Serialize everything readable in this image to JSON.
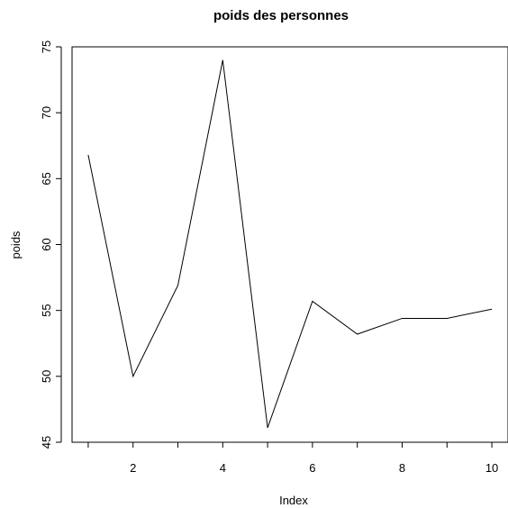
{
  "chart_data": {
    "type": "line",
    "title": "poids des personnes",
    "xlabel": "Index",
    "ylabel": "poids",
    "x": [
      1,
      2,
      3,
      4,
      5,
      6,
      7,
      8,
      9,
      10
    ],
    "series": [
      {
        "values": [
          66.8,
          50.0,
          56.9,
          74.0,
          46.1,
          55.7,
          53.2,
          54.4,
          54.4,
          55.1
        ]
      }
    ],
    "xlim": [
      0.64,
      10.36
    ],
    "ylim": [
      45,
      75
    ],
    "xticks": [
      2,
      4,
      6,
      8,
      10
    ],
    "yticks": [
      45,
      50,
      55,
      60,
      65,
      70,
      75
    ],
    "grid": false,
    "line_color": "#000000"
  }
}
